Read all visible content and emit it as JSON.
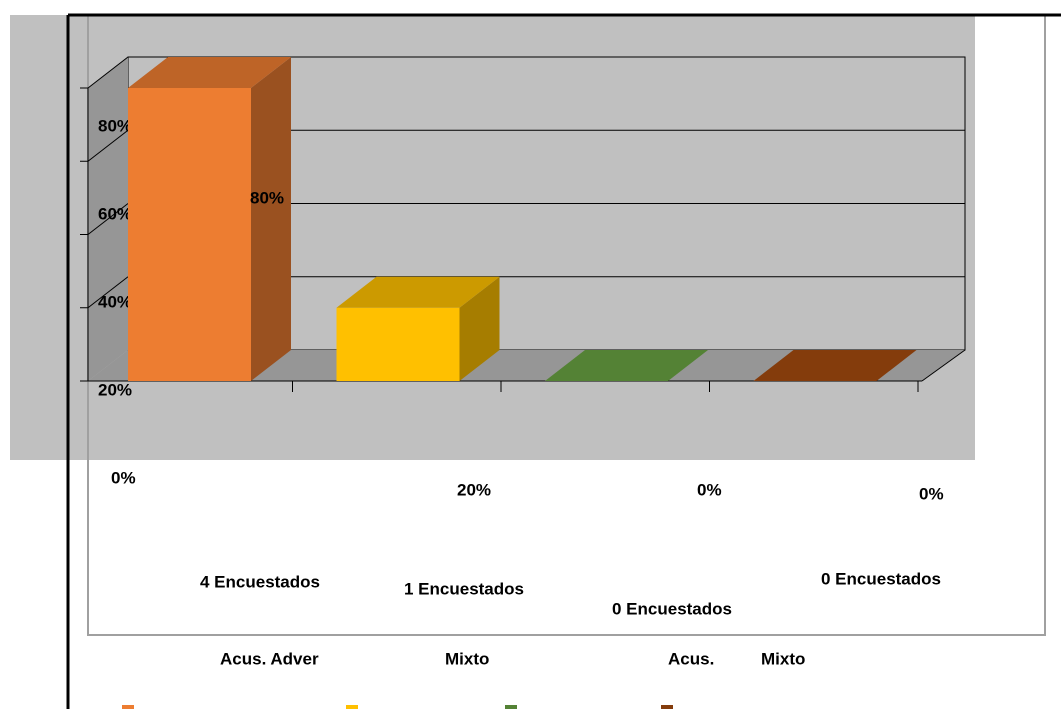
{
  "chart_data": {
    "type": "bar3d",
    "categories": [
      "Acus. Adver",
      "Mixto",
      "Acus.",
      "Mixto"
    ],
    "values": [
      80,
      20,
      0,
      0
    ],
    "value_labels": [
      "80%",
      "20%",
      "0%",
      "0%"
    ],
    "annotations": [
      "4 Encuestados",
      "1 Encuestados",
      "0 Encuestados",
      "0 Encuestados"
    ],
    "colors": [
      "#ed7d31",
      "#ffc000",
      "#548235",
      "#843c0c"
    ],
    "ylim": [
      0,
      80
    ],
    "yticks": [
      {
        "value": 0,
        "label": "0%"
      },
      {
        "value": 20,
        "label": "20%"
      },
      {
        "value": 40,
        "label": "40%"
      },
      {
        "value": 60,
        "label": "60%"
      },
      {
        "value": 80,
        "label": "80%"
      }
    ],
    "grid": true
  }
}
